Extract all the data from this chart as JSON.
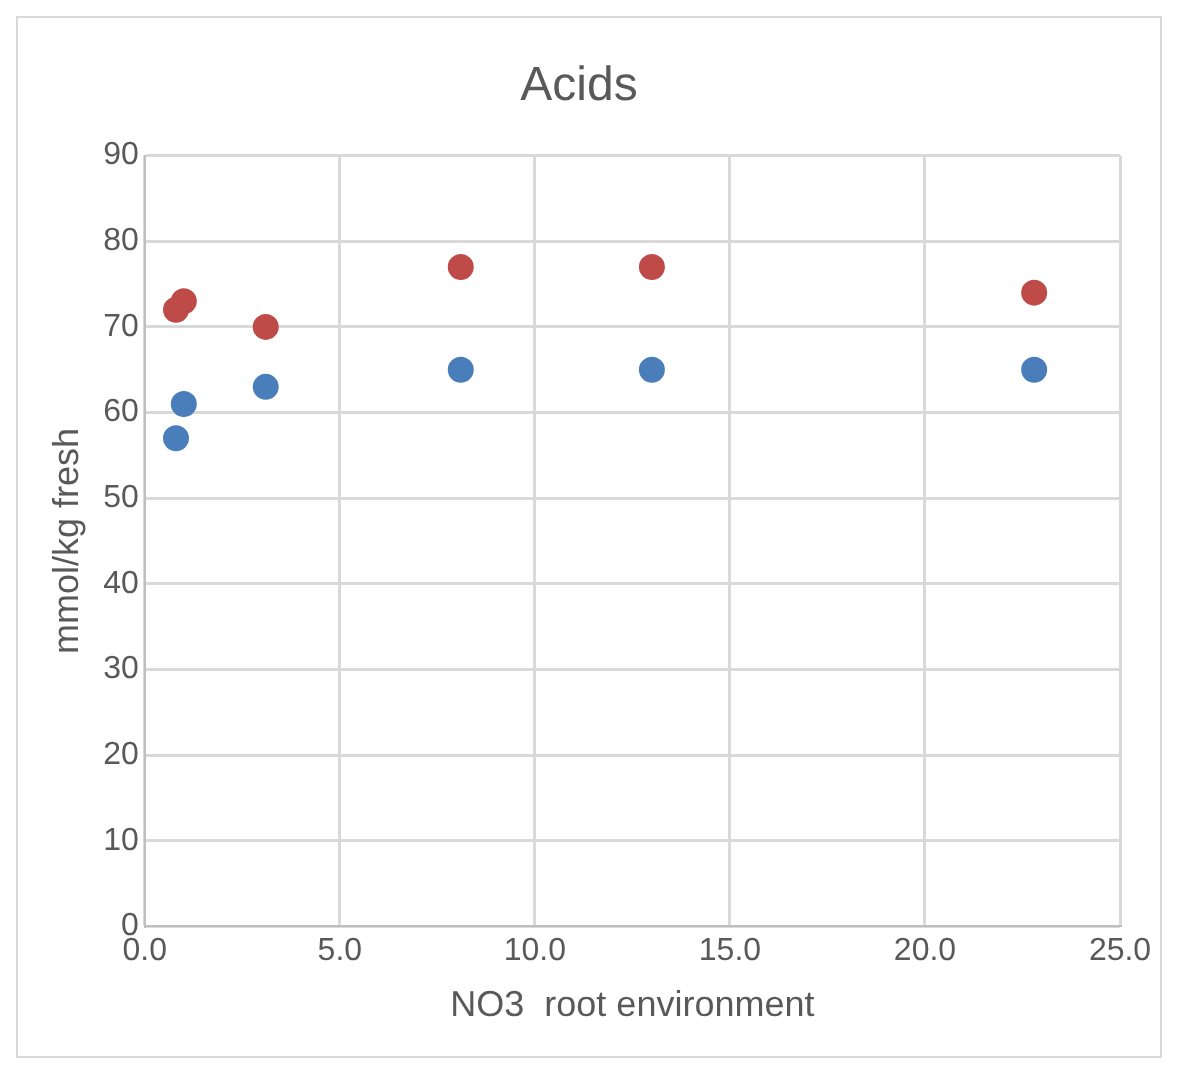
{
  "chart_data": {
    "type": "scatter",
    "title": "Acids",
    "xlabel": "NO3  root environment",
    "ylabel": "mmol/kg fresh",
    "xlim": [
      0,
      25
    ],
    "xticks": [
      {
        "value": 0,
        "label": "0.0"
      },
      {
        "value": 5,
        "label": "5.0"
      },
      {
        "value": 10,
        "label": "10.0"
      },
      {
        "value": 15,
        "label": "15.0"
      },
      {
        "value": 20,
        "label": "20.0"
      },
      {
        "value": 25,
        "label": "25.0"
      }
    ],
    "ylim": [
      0,
      90
    ],
    "yticks": [
      0,
      10,
      20,
      30,
      40,
      50,
      60,
      70,
      80,
      90
    ],
    "grid": true,
    "legend": false,
    "marker": "circle",
    "series": [
      {
        "color": "#4a7ebb",
        "x": [
          0.8,
          1.0,
          3.1,
          8.1,
          13.0,
          22.8
        ],
        "values": [
          57,
          61,
          63,
          65,
          65,
          65
        ]
      },
      {
        "color": "#be4b48",
        "x": [
          0.8,
          1.0,
          3.1,
          8.1,
          13.0,
          22.8
        ],
        "values": [
          72,
          73,
          70,
          77,
          77,
          74
        ]
      }
    ]
  }
}
